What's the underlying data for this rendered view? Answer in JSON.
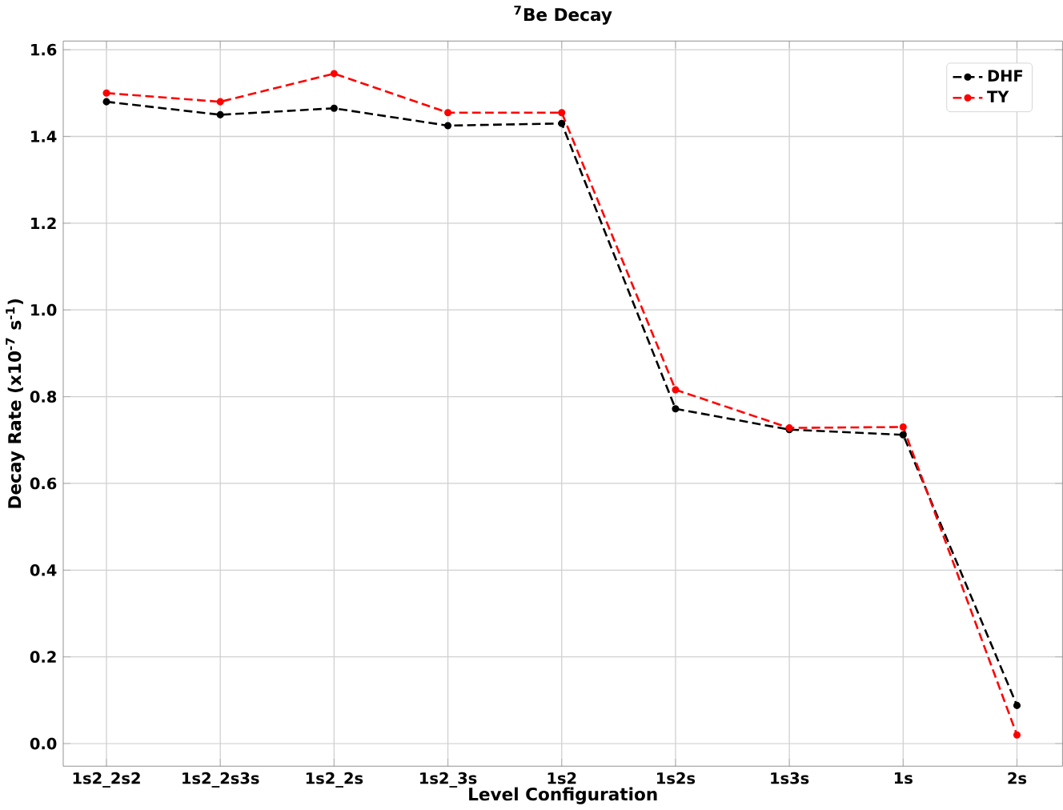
{
  "chart_data": {
    "type": "line",
    "title": "$^{7}$Be Decay",
    "xlabel": "Level Configuration",
    "ylabel": "Decay Rate (x10$^{-7}$ s$^{-1}$)",
    "categories": [
      "1s2_2s2",
      "1s2_2s3s",
      "1s2_2s",
      "1s2_3s",
      "1s2",
      "1s2s",
      "1s3s",
      "1s",
      "2s"
    ],
    "series": [
      {
        "name": "DHF",
        "color": "#000000",
        "values": [
          1.48,
          1.45,
          1.465,
          1.425,
          1.43,
          0.772,
          0.724,
          0.712,
          0.088
        ]
      },
      {
        "name": "TY",
        "color": "#ff0000",
        "values": [
          1.5,
          1.48,
          1.545,
          1.455,
          1.455,
          0.816,
          0.728,
          0.73,
          0.02
        ]
      }
    ],
    "ylim": [
      -0.052,
      1.62
    ],
    "yticks": [
      {
        "value": 0,
        "label": "0.0"
      },
      0.2,
      0.4,
      0.6,
      0.8,
      {
        "value": 1,
        "label": "1.0"
      },
      1.2,
      1.4,
      1.6
    ],
    "grid": true,
    "legend": "top right",
    "marker": "circle",
    "line_style": "dashed"
  }
}
